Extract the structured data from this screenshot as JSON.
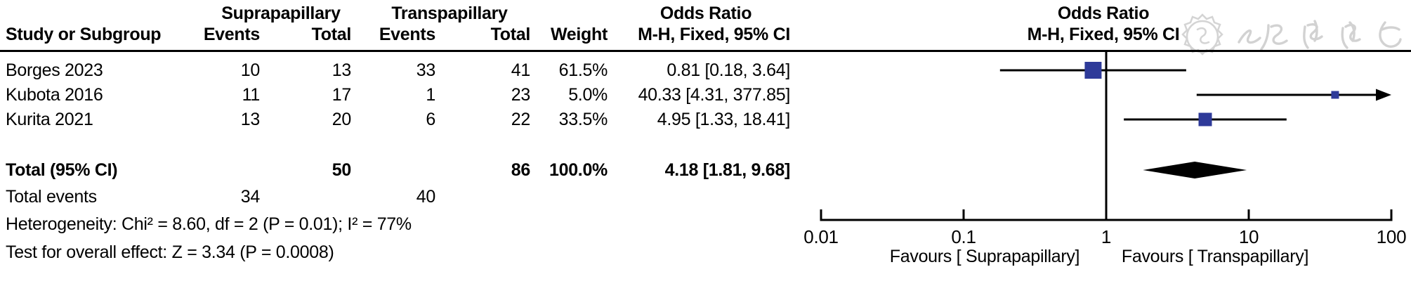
{
  "figure_type": "meta-analysis forest plot",
  "table": {
    "group_headers": {
      "left_group": "Suprapapillary",
      "right_group": "Transpapillary",
      "odds_ratio": "Odds Ratio"
    },
    "columns": {
      "study": "Study or Subgroup",
      "events": "Events",
      "total": "Total",
      "weight": "Weight",
      "mh_fixed_ci": "M-H, Fixed, 95% CI"
    },
    "rows": [
      {
        "study": "Borges 2023",
        "sup_events": "10",
        "sup_total": "13",
        "trans_events": "33",
        "trans_total": "41",
        "weight": "61.5%",
        "or_ci": "0.81 [0.18, 3.64]"
      },
      {
        "study": "Kubota 2016",
        "sup_events": "11",
        "sup_total": "17",
        "trans_events": "1",
        "trans_total": "23",
        "weight": "5.0%",
        "or_ci": "40.33 [4.31, 377.85]"
      },
      {
        "study": "Kurita 2021",
        "sup_events": "13",
        "sup_total": "20",
        "trans_events": "6",
        "trans_total": "22",
        "weight": "33.5%",
        "or_ci": "4.95 [1.33, 18.41]"
      }
    ],
    "total_row": {
      "label": "Total (95% CI)",
      "sup_total": "50",
      "trans_total": "86",
      "weight": "100.0%",
      "or_ci": "4.18 [1.81, 9.68]"
    },
    "total_events_row": {
      "label": "Total events",
      "sup_events": "34",
      "trans_events": "40"
    },
    "heterogeneity": "Heterogeneity: Chi² = 8.60, df = 2 (P = 0.01); I² = 77%",
    "overall_effect": "Test for overall effect: Z = 3.34 (P = 0.0008)"
  },
  "plot_header": {
    "title": "Odds Ratio",
    "subtitle": "M-H, Fixed, 95% CI"
  },
  "watermark": {
    "text": "中华医学会"
  },
  "colors": {
    "marker_blue": "#2e3a99",
    "diamond_black": "#000000",
    "watermark_gray": "#d4d4d4",
    "line_black": "#000000"
  },
  "chart_data": {
    "type": "scatter",
    "subtype": "forest_plot_odds_ratio",
    "title": "Odds Ratio  M-H, Fixed, 95% CI",
    "x_scale": "log10",
    "xlim": [
      0.01,
      100
    ],
    "x_ticks": [
      "0.01",
      "0.1",
      "1",
      "10",
      "100"
    ],
    "reference_line": 1,
    "series": [
      {
        "name": "Borges 2023",
        "or": 0.81,
        "ci_low": 0.18,
        "ci_high": 3.64,
        "weight_pct": 61.5
      },
      {
        "name": "Kubota 2016",
        "or": 40.33,
        "ci_low": 4.31,
        "ci_high": 377.85,
        "weight_pct": 5.0
      },
      {
        "name": "Kurita 2021",
        "or": 4.95,
        "ci_low": 1.33,
        "ci_high": 18.41,
        "weight_pct": 33.5
      }
    ],
    "total": {
      "name": "Total (95% CI)",
      "or": 4.18,
      "ci_low": 1.81,
      "ci_high": 9.68,
      "weight_pct": 100.0
    },
    "xlabel_left": "Favours [ Suprapapillary]",
    "xlabel_right": "Favours [ Transpapillary]",
    "legend": "none",
    "grid": "off"
  }
}
